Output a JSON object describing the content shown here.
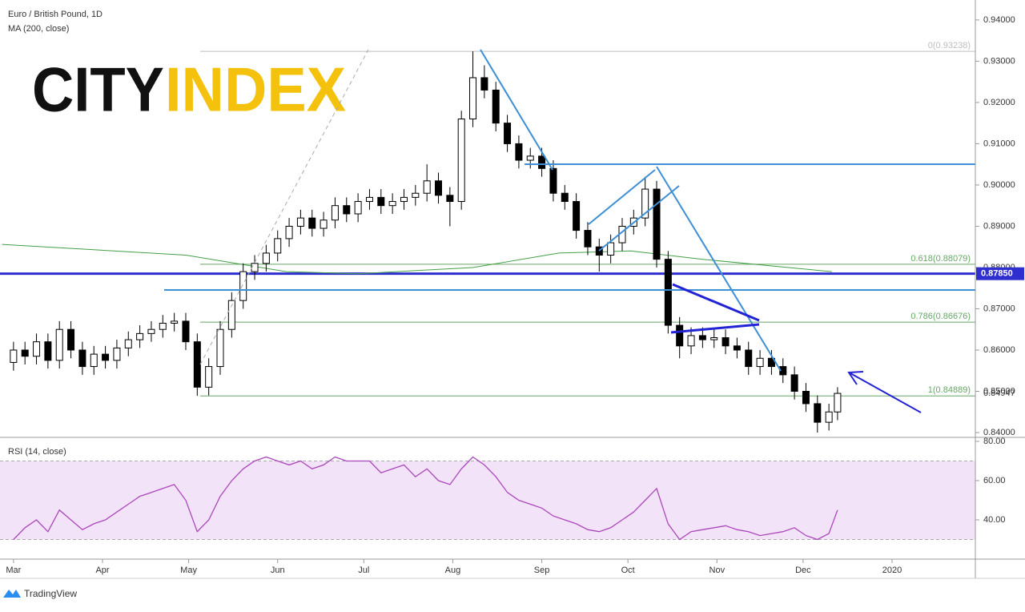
{
  "header": {
    "title": "Euro / British Pound, 1D",
    "indicator": "MA (200, close)"
  },
  "branding": {
    "logo_left": "CITY",
    "logo_right": "INDEX",
    "footer": "TradingView"
  },
  "chart_data": [
    {
      "type": "candlestick",
      "x": [
        0,
        4,
        8,
        12,
        16,
        20,
        24,
        28,
        32,
        36,
        40,
        44,
        48,
        52,
        56,
        60,
        64,
        68,
        72,
        76,
        80,
        84,
        88,
        92,
        96,
        100,
        104,
        108,
        112,
        116,
        120,
        124,
        128,
        132,
        136,
        140,
        144,
        148,
        152,
        156,
        160,
        164,
        168,
        172,
        176,
        180,
        184,
        188,
        192,
        196,
        200,
        204,
        208,
        212,
        216,
        220,
        224,
        228,
        232,
        236,
        240,
        244,
        248,
        252,
        256,
        260,
        264,
        268,
        272,
        276,
        280,
        284,
        287
      ],
      "open": [
        0.857,
        0.86,
        0.8585,
        0.862,
        0.8575,
        0.865,
        0.86,
        0.856,
        0.859,
        0.8575,
        0.8605,
        0.8625,
        0.864,
        0.865,
        0.8665,
        0.867,
        0.862,
        0.851,
        0.856,
        0.865,
        0.872,
        0.879,
        0.881,
        0.8835,
        0.887,
        0.89,
        0.892,
        0.8895,
        0.8915,
        0.895,
        0.893,
        0.896,
        0.897,
        0.895,
        0.896,
        0.897,
        0.898,
        0.901,
        0.8975,
        0.896,
        0.916,
        0.926,
        0.923,
        0.915,
        0.91,
        0.906,
        0.907,
        0.904,
        0.898,
        0.896,
        0.889,
        0.885,
        0.883,
        0.886,
        0.89,
        0.892,
        0.899,
        0.882,
        0.866,
        0.861,
        0.8635,
        0.8625,
        0.863,
        0.861,
        0.86,
        0.856,
        0.858,
        0.856,
        0.854,
        0.85,
        0.847,
        0.8425,
        0.845
      ],
      "high": [
        0.862,
        0.862,
        0.864,
        0.864,
        0.867,
        0.867,
        0.862,
        0.861,
        0.861,
        0.8625,
        0.8645,
        0.866,
        0.867,
        0.8685,
        0.869,
        0.869,
        0.864,
        0.858,
        0.867,
        0.874,
        0.881,
        0.883,
        0.8855,
        0.889,
        0.892,
        0.894,
        0.894,
        0.8935,
        0.897,
        0.897,
        0.898,
        0.899,
        0.899,
        0.898,
        0.899,
        0.9,
        0.905,
        0.903,
        0.8995,
        0.918,
        0.9324,
        0.929,
        0.925,
        0.917,
        0.912,
        0.909,
        0.909,
        0.906,
        0.9,
        0.898,
        0.891,
        0.887,
        0.888,
        0.892,
        0.894,
        0.902,
        0.901,
        0.884,
        0.868,
        0.8655,
        0.8655,
        0.865,
        0.865,
        0.863,
        0.862,
        0.86,
        0.86,
        0.858,
        0.856,
        0.852,
        0.849,
        0.847,
        0.851
      ],
      "low": [
        0.855,
        0.8565,
        0.8565,
        0.8555,
        0.8555,
        0.858,
        0.854,
        0.854,
        0.8555,
        0.8555,
        0.8585,
        0.8605,
        0.862,
        0.863,
        0.8645,
        0.86,
        0.8489,
        0.849,
        0.854,
        0.863,
        0.87,
        0.877,
        0.879,
        0.8815,
        0.885,
        0.888,
        0.8875,
        0.8875,
        0.8895,
        0.891,
        0.891,
        0.894,
        0.893,
        0.893,
        0.894,
        0.895,
        0.896,
        0.8955,
        0.89,
        0.894,
        0.914,
        0.921,
        0.913,
        0.908,
        0.904,
        0.904,
        0.902,
        0.896,
        0.894,
        0.887,
        0.883,
        0.879,
        0.881,
        0.884,
        0.888,
        0.89,
        0.88,
        0.864,
        0.858,
        0.859,
        0.8605,
        0.8605,
        0.859,
        0.858,
        0.854,
        0.854,
        0.854,
        0.852,
        0.848,
        0.845,
        0.84,
        0.8405,
        0.843
      ],
      "close": [
        0.86,
        0.8585,
        0.862,
        0.8575,
        0.865,
        0.86,
        0.856,
        0.859,
        0.8575,
        0.8605,
        0.8625,
        0.864,
        0.865,
        0.8665,
        0.867,
        0.862,
        0.851,
        0.856,
        0.865,
        0.872,
        0.879,
        0.881,
        0.8835,
        0.887,
        0.89,
        0.892,
        0.8895,
        0.8915,
        0.895,
        0.893,
        0.896,
        0.897,
        0.895,
        0.896,
        0.897,
        0.898,
        0.901,
        0.8975,
        0.896,
        0.916,
        0.926,
        0.923,
        0.915,
        0.91,
        0.906,
        0.907,
        0.904,
        0.898,
        0.896,
        0.889,
        0.885,
        0.883,
        0.886,
        0.89,
        0.892,
        0.899,
        0.882,
        0.866,
        0.861,
        0.8635,
        0.8625,
        0.863,
        0.861,
        0.86,
        0.856,
        0.858,
        0.856,
        0.854,
        0.85,
        0.847,
        0.8425,
        0.845,
        0.8495
      ],
      "up_color": "#ffffff",
      "down_color": "#000000",
      "wick_color": "#000000",
      "ma": {
        "x": [
          -4,
          60,
          95,
          120,
          160,
          190,
          215,
          240,
          270,
          285
        ],
        "values": [
          0.8856,
          0.883,
          0.879,
          0.8785,
          0.88,
          0.8835,
          0.884,
          0.882,
          0.88,
          0.879
        ],
        "color": "#43a047"
      },
      "xlim": [
        -4.7,
        335
      ],
      "ylim": [
        0.83903,
        0.94483
      ],
      "xticks": [
        {
          "value": 0,
          "label": "Mar"
        },
        {
          "value": 31,
          "label": "Apr"
        },
        {
          "value": 61,
          "label": "May"
        },
        {
          "value": 92,
          "label": "Jun"
        },
        {
          "value": 122,
          "label": "Jul"
        },
        {
          "value": 153,
          "label": "Aug"
        },
        {
          "value": 184,
          "label": "Sep"
        },
        {
          "value": 214,
          "label": "Oct"
        },
        {
          "value": 245,
          "label": "Nov"
        },
        {
          "value": 275,
          "label": "Dec"
        },
        {
          "value": 306,
          "label": "2020"
        }
      ],
      "yticks": [
        {
          "value": 0.84,
          "label": "0.84000"
        },
        {
          "value": 0.85,
          "label": "0.85000"
        },
        {
          "value": 0.86,
          "label": "0.86000"
        },
        {
          "value": 0.87,
          "label": "0.87000"
        },
        {
          "value": 0.88,
          "label": "0.88000"
        },
        {
          "value": 0.89,
          "label": "0.89000"
        },
        {
          "value": 0.9,
          "label": "0.90000"
        },
        {
          "value": 0.91,
          "label": "0.91000"
        },
        {
          "value": 0.92,
          "label": "0.92000"
        },
        {
          "value": 0.93,
          "label": "0.93000"
        },
        {
          "value": 0.94,
          "label": "0.94000"
        }
      ],
      "fib_levels": [
        {
          "value": 0.93238,
          "label": "0(0.93238)",
          "color": "#bdbdbd"
        },
        {
          "value": 0.88079,
          "label": "0.618(0.88079)",
          "color": "#66a866"
        },
        {
          "value": 0.86676,
          "label": "0.786(0.86676)",
          "color": "#66a866"
        },
        {
          "value": 0.84889,
          "label": "1(0.84889)",
          "color": "#66a866"
        }
      ],
      "levels": [
        {
          "value": 0.8785,
          "label": "0.87850",
          "color": "#2f2fd0"
        }
      ],
      "last_price": {
        "value": 0.84947,
        "label": "0.84947"
      }
    },
    {
      "type": "line",
      "title": "RSI (14, close)",
      "x": [
        0,
        4,
        8,
        12,
        16,
        20,
        24,
        28,
        32,
        36,
        40,
        44,
        48,
        52,
        56,
        60,
        64,
        68,
        72,
        76,
        80,
        84,
        88,
        92,
        96,
        100,
        104,
        108,
        112,
        116,
        120,
        124,
        128,
        132,
        136,
        140,
        144,
        148,
        152,
        156,
        160,
        164,
        168,
        172,
        176,
        180,
        184,
        188,
        192,
        196,
        200,
        204,
        208,
        212,
        216,
        220,
        224,
        228,
        232,
        236,
        240,
        244,
        248,
        252,
        256,
        260,
        264,
        268,
        272,
        276,
        280,
        284,
        287
      ],
      "values": [
        30,
        36,
        40,
        34,
        45,
        40,
        35,
        38,
        40,
        44,
        48,
        52,
        54,
        56,
        58,
        50,
        34,
        40,
        52,
        60,
        66,
        70,
        72,
        70,
        68,
        70,
        66,
        68,
        72,
        70,
        70,
        70,
        64,
        66,
        68,
        62,
        66,
        60,
        58,
        66,
        72,
        68,
        62,
        54,
        50,
        48,
        46,
        42,
        40,
        38,
        35,
        34,
        36,
        40,
        44,
        50,
        56,
        38,
        30,
        34,
        35,
        36,
        37,
        35,
        34,
        32,
        33,
        34,
        36,
        32,
        30,
        33,
        45
      ],
      "color": "#ab47bc",
      "xlim": [
        -4.7,
        335
      ],
      "ylim": [
        20,
        81.2
      ],
      "yticks": [
        {
          "value": 40,
          "label": "40.00"
        },
        {
          "value": 60,
          "label": "60.00"
        },
        {
          "value": 80,
          "label": "80.00"
        }
      ],
      "band": {
        "range": [
          30,
          70
        ],
        "fill": "#f3e3f8"
      }
    }
  ]
}
